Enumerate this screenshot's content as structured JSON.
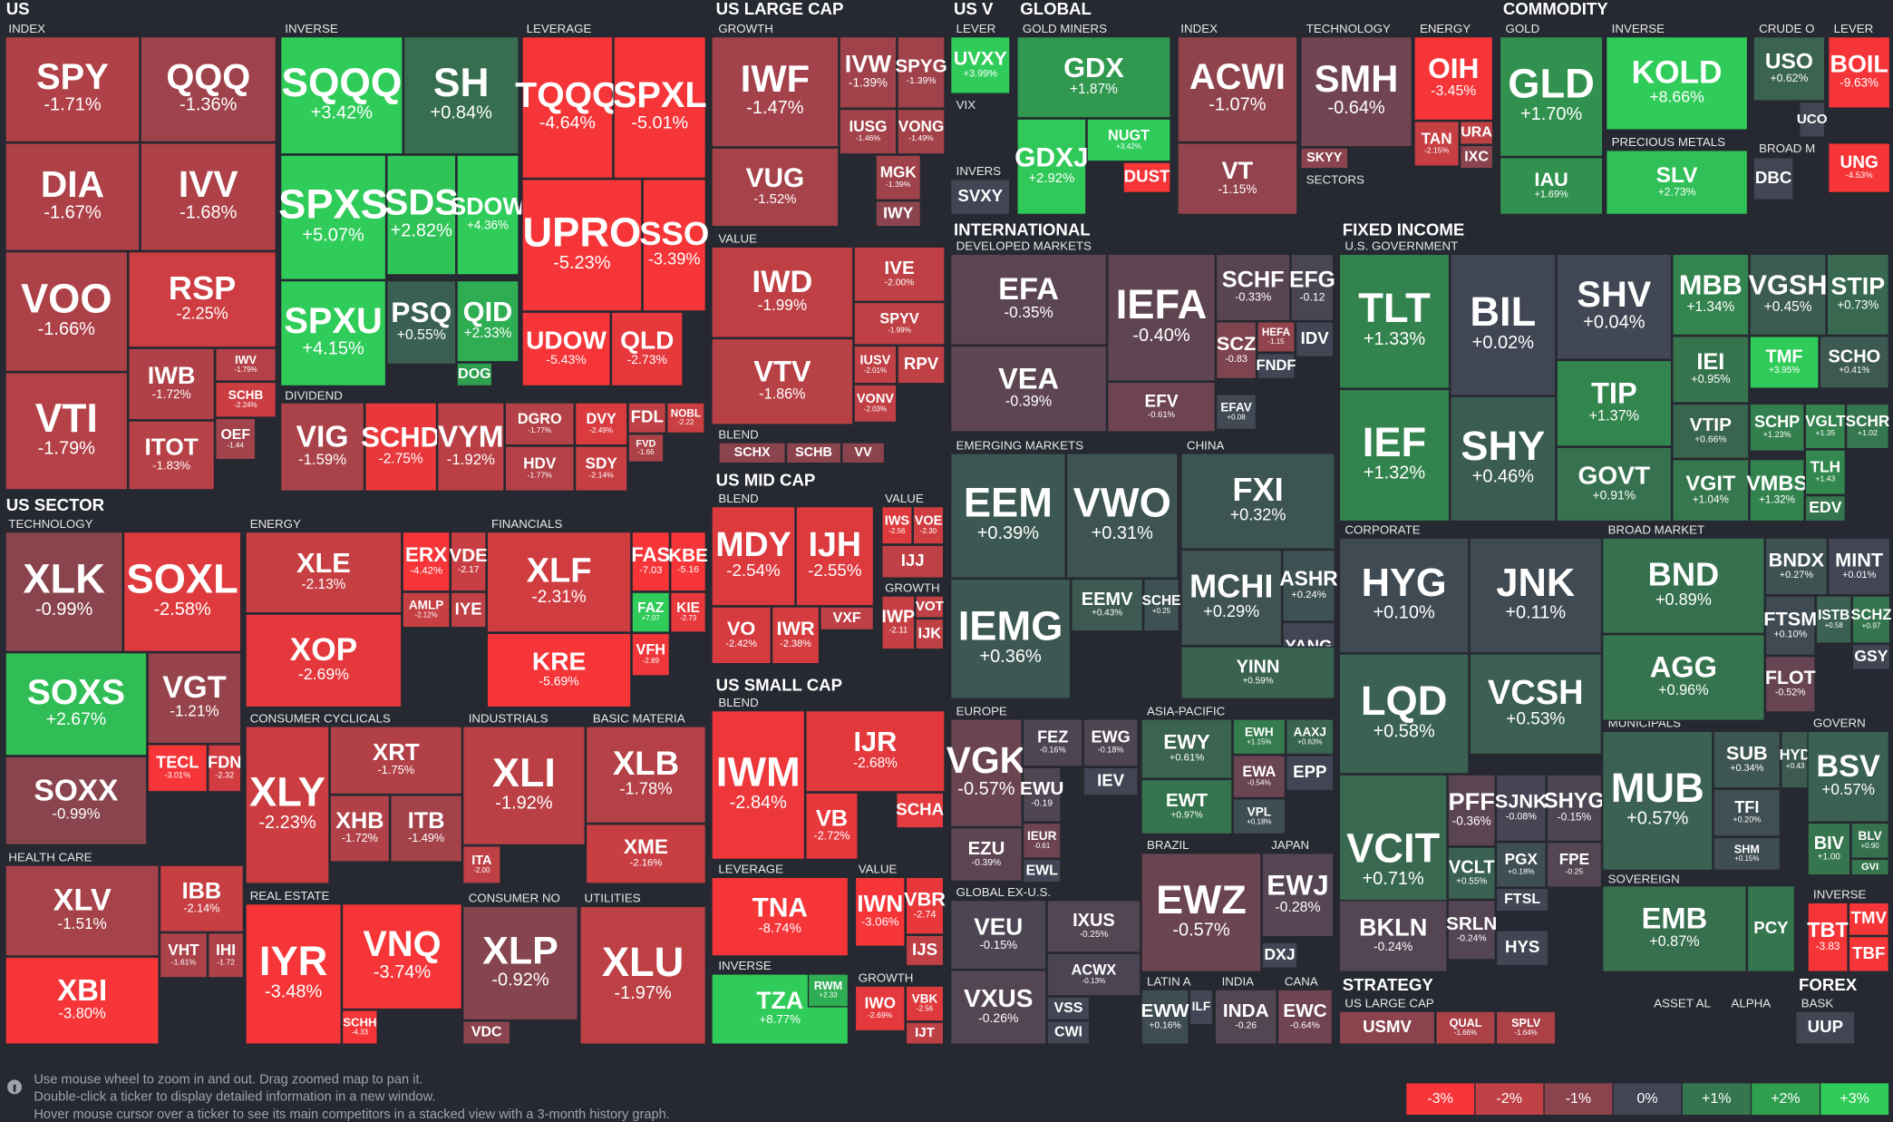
{
  "headers": [
    {
      "text": "US"
    },
    {
      "text": "US LARGE CAP"
    },
    {
      "text": "US V"
    },
    {
      "text": "GLOBAL"
    },
    {
      "text": "COMMODITY"
    },
    {
      "text": "US SECTOR"
    },
    {
      "text": "US MID CAP"
    },
    {
      "text": "US SMALL CAP"
    },
    {
      "text": "INTERNATIONAL"
    },
    {
      "text": "FIXED INCOME"
    },
    {
      "text": "STRATEGY"
    },
    {
      "text": "FOREX"
    },
    {
      "text": "INDEX"
    },
    {
      "text": "INVERSE"
    },
    {
      "text": "LEVERAGE"
    },
    {
      "text": "GROWTH"
    },
    {
      "text": "VALUE"
    },
    {
      "text": "BLEND"
    },
    {
      "text": "LEVER"
    },
    {
      "text": "VIX"
    },
    {
      "text": "INVERS"
    },
    {
      "text": "GOLD MINERS"
    },
    {
      "text": "INDEX"
    },
    {
      "text": "TECHNOLOGY"
    },
    {
      "text": "ENERGY"
    },
    {
      "text": "GOLD"
    },
    {
      "text": "INVERSE"
    },
    {
      "text": "CRUDE O"
    },
    {
      "text": "LEVER"
    },
    {
      "text": "PRECIOUS METALS"
    },
    {
      "text": "BROAD M"
    },
    {
      "text": "SECTORS"
    },
    {
      "text": "DIVIDEND"
    },
    {
      "text": "DEVELOPED MARKETS"
    },
    {
      "text": "EMERGING MARKETS"
    },
    {
      "text": "CHINA"
    },
    {
      "text": "U.S. GOVERNMENT"
    },
    {
      "text": "CORPORATE"
    },
    {
      "text": "BROAD MARKET"
    },
    {
      "text": "MUNICIPALS"
    },
    {
      "text": "GOVERN"
    },
    {
      "text": "SOVEREIGN"
    },
    {
      "text": "INVERSE"
    },
    {
      "text": "TECHNOLOGY"
    },
    {
      "text": "ENERGY"
    },
    {
      "text": "FINANCIALS"
    },
    {
      "text": "CONSUMER CYCLICALS"
    },
    {
      "text": "INDUSTRIALS"
    },
    {
      "text": "BASIC MATERIA"
    },
    {
      "text": "HEALTH CARE"
    },
    {
      "text": "REAL ESTATE"
    },
    {
      "text": "CONSUMER NO"
    },
    {
      "text": "UTILITIES"
    },
    {
      "text": "BLEND"
    },
    {
      "text": "VALUE"
    },
    {
      "text": "GROWTH"
    },
    {
      "text": "BLEND"
    },
    {
      "text": "LEVERAGE"
    },
    {
      "text": "VALUE"
    },
    {
      "text": "INVERSE"
    },
    {
      "text": "GROWTH"
    },
    {
      "text": "EUROPE"
    },
    {
      "text": "ASIA-PACIFIC"
    },
    {
      "text": "BRAZIL"
    },
    {
      "text": "JAPAN"
    },
    {
      "text": "GLOBAL EX-U.S."
    },
    {
      "text": "LATIN A"
    },
    {
      "text": "INDIA"
    },
    {
      "text": "CANA"
    },
    {
      "text": "US LARGE CAP"
    },
    {
      "text": "ASSET AL"
    },
    {
      "text": "ALPHA"
    },
    {
      "text": "BASK"
    }
  ],
  "tiles": [
    {
      "ticker": "SPY",
      "change": "-1.71%"
    },
    {
      "ticker": "QQQ",
      "change": "-1.36%"
    },
    {
      "ticker": "DIA",
      "change": "-1.67%"
    },
    {
      "ticker": "IVV",
      "change": "-1.68%"
    },
    {
      "ticker": "VOO",
      "change": "-1.66%"
    },
    {
      "ticker": "RSP",
      "change": "-2.25%"
    },
    {
      "ticker": "VTI",
      "change": "-1.79%"
    },
    {
      "ticker": "IWB",
      "change": "-1.72%"
    },
    {
      "ticker": "ITOT",
      "change": "-1.83%"
    },
    {
      "ticker": "IWV",
      "change": "-1.79%"
    },
    {
      "ticker": "SCHB",
      "change": "-2.24%"
    },
    {
      "ticker": "OEF",
      "change": "-1.44"
    },
    {
      "ticker": "SQQQ",
      "change": "+3.42%"
    },
    {
      "ticker": "SH",
      "change": "+0.84%"
    },
    {
      "ticker": "SPXS",
      "change": "+5.07%"
    },
    {
      "ticker": "SDS",
      "change": "+2.82%"
    },
    {
      "ticker": "SDOW",
      "change": "+4.36%"
    },
    {
      "ticker": "SPXU",
      "change": "+4.15%"
    },
    {
      "ticker": "PSQ",
      "change": "+0.55%"
    },
    {
      "ticker": "QID",
      "change": "+2.33%"
    },
    {
      "ticker": "DOG",
      "color": "#2f9e4f"
    },
    {
      "ticker": "TQQQ",
      "change": "-4.64%"
    },
    {
      "ticker": "SPXL",
      "change": "-5.01%"
    },
    {
      "ticker": "UPRO",
      "change": "-5.23%"
    },
    {
      "ticker": "SSO",
      "change": "-3.39%"
    },
    {
      "ticker": "UDOW",
      "change": "-5.43%"
    },
    {
      "ticker": "QLD",
      "change": "-2.73%"
    },
    {
      "ticker": "VIG",
      "change": "-1.59%"
    },
    {
      "ticker": "SCHD",
      "change": "-2.75%"
    },
    {
      "ticker": "VYM",
      "change": "-1.92%"
    },
    {
      "ticker": "DGRO",
      "change": "-1.77%"
    },
    {
      "ticker": "HDV",
      "change": "-1.77%"
    },
    {
      "ticker": "DVY",
      "change": "-2.49%"
    },
    {
      "ticker": "SDY",
      "change": "-2.14%"
    },
    {
      "ticker": "FDL",
      "color": "#bf4045"
    },
    {
      "ticker": "NOBL",
      "change": "-2.22"
    },
    {
      "ticker": "FVD",
      "change": "-1.66"
    },
    {
      "ticker": "IWF",
      "change": "-1.47%"
    },
    {
      "ticker": "IVW",
      "change": "-1.39%"
    },
    {
      "ticker": "SPYG",
      "change": "-1.39%"
    },
    {
      "ticker": "IUSG",
      "change": "-1.46%"
    },
    {
      "ticker": "VONG",
      "change": "-1.49%"
    },
    {
      "ticker": "VUG",
      "change": "-1.52%"
    },
    {
      "ticker": "MGK",
      "change": "-1.39%"
    },
    {
      "ticker": "IWY",
      "color": "#8b444e"
    },
    {
      "ticker": "IWD",
      "change": "-1.99%"
    },
    {
      "ticker": "IVE",
      "change": "-2.00%"
    },
    {
      "ticker": "SPYV",
      "change": "-1.99%"
    },
    {
      "ticker": "VTV",
      "change": "-1.86%"
    },
    {
      "ticker": "IUSV",
      "change": "-2.01%"
    },
    {
      "ticker": "RPV",
      "color": "#bf4045"
    },
    {
      "ticker": "VONV",
      "change": "-2.03%"
    },
    {
      "ticker": "SCHX",
      "color": "#8b444e"
    },
    {
      "ticker": "SCHB",
      "color": "#8b444e"
    },
    {
      "ticker": "VV",
      "color": "#8b444e"
    },
    {
      "ticker": "MDY",
      "change": "-2.54%"
    },
    {
      "ticker": "IJH",
      "change": "-2.55%"
    },
    {
      "ticker": "VO",
      "change": "-2.42%"
    },
    {
      "ticker": "IWR",
      "change": "-2.38%"
    },
    {
      "ticker": "VXF",
      "color": "#bf4045"
    },
    {
      "ticker": "IWS",
      "change": "-2.56"
    },
    {
      "ticker": "VOE",
      "change": "-2.30"
    },
    {
      "ticker": "IJJ",
      "color": "#bf4045"
    },
    {
      "ticker": "IWP",
      "change": "-2.11"
    },
    {
      "ticker": "VOT",
      "color": "#bf4045"
    },
    {
      "ticker": "IJK",
      "color": "#bf4045"
    },
    {
      "ticker": "IWM",
      "change": "-2.84%"
    },
    {
      "ticker": "IJR",
      "change": "-2.68%"
    },
    {
      "ticker": "VB",
      "change": "-2.72%"
    },
    {
      "ticker": "SCHA",
      "color": "#e53a3f"
    },
    {
      "ticker": "TNA",
      "change": "-8.74%"
    },
    {
      "ticker": "IWN",
      "change": "-3.06%"
    },
    {
      "ticker": "VBR",
      "change": "-2.74"
    },
    {
      "ticker": "IJS",
      "color": "#bf4045"
    },
    {
      "ticker": "TZA",
      "change": "+8.77%"
    },
    {
      "ticker": "RWM",
      "change": "+2.33"
    },
    {
      "ticker": "IWO",
      "change": "-2.69%"
    },
    {
      "ticker": "VBK",
      "change": "-2.56"
    },
    {
      "ticker": "IJT",
      "color": "#bf4045"
    },
    {
      "ticker": "XLK",
      "change": "-0.99%"
    },
    {
      "ticker": "SOXL",
      "change": "-2.58%"
    },
    {
      "ticker": "SOXS",
      "change": "+2.67%"
    },
    {
      "ticker": "VGT",
      "change": "-1.21%"
    },
    {
      "ticker": "SOXX",
      "change": "-0.99%"
    },
    {
      "ticker": "TECL",
      "change": "-3.01%"
    },
    {
      "ticker": "FDN",
      "change": "-2.32"
    },
    {
      "ticker": "XLE",
      "change": "-2.13%"
    },
    {
      "ticker": "ERX",
      "change": "-4.42%"
    },
    {
      "ticker": "VDE",
      "change": "-2.17"
    },
    {
      "ticker": "XOP",
      "change": "-2.69%"
    },
    {
      "ticker": "AMLP",
      "change": "-2.12%"
    },
    {
      "ticker": "IYE",
      "color": "#bf4045"
    },
    {
      "ticker": "XLF",
      "change": "-2.31%"
    },
    {
      "ticker": "FAS",
      "change": "-7.03"
    },
    {
      "ticker": "KBE",
      "change": "-5.16"
    },
    {
      "ticker": "KRE",
      "change": "-5.69%"
    },
    {
      "ticker": "FAZ",
      "change": "+7.07"
    },
    {
      "ticker": "KIE",
      "change": "-2.73"
    },
    {
      "ticker": "VFH",
      "change": "-2.89"
    },
    {
      "ticker": "XLY",
      "change": "-2.23%"
    },
    {
      "ticker": "XRT",
      "change": "-1.75%"
    },
    {
      "ticker": "XHB",
      "change": "-1.72%"
    },
    {
      "ticker": "ITB",
      "change": "-1.49%"
    },
    {
      "ticker": "XLI",
      "change": "-1.92%"
    },
    {
      "ticker": "ITA",
      "change": "-2.00"
    },
    {
      "ticker": "XLB",
      "change": "-1.78%"
    },
    {
      "ticker": "XME",
      "change": "-2.16%"
    },
    {
      "ticker": "XLV",
      "change": "-1.51%"
    },
    {
      "ticker": "IBB",
      "change": "-2.14%"
    },
    {
      "ticker": "VHT",
      "change": "-1.61%"
    },
    {
      "ticker": "IHI",
      "change": "-1.72"
    },
    {
      "ticker": "XBI",
      "change": "-3.80%"
    },
    {
      "ticker": "IYR",
      "change": "-3.48%"
    },
    {
      "ticker": "VNQ",
      "change": "-3.74%"
    },
    {
      "ticker": "SCHH",
      "change": "-4.33"
    },
    {
      "ticker": "XLP",
      "change": "-0.92%"
    },
    {
      "ticker": "VDC",
      "color": "#8b444e"
    },
    {
      "ticker": "XLU",
      "change": "-1.97%"
    },
    {
      "ticker": "UVXY",
      "change": "+3.99%"
    },
    {
      "ticker": "SVXY",
      "color": "#414554"
    },
    {
      "ticker": "GDX",
      "change": "+1.87%"
    },
    {
      "ticker": "GDXJ",
      "change": "+2.92%"
    },
    {
      "ticker": "NUGT",
      "change": "+3.42%"
    },
    {
      "ticker": "DUST",
      "color": "#f63538"
    },
    {
      "ticker": "ACWI",
      "change": "-1.07%"
    },
    {
      "ticker": "VT",
      "change": "-1.15%"
    },
    {
      "ticker": "SMH",
      "change": "-0.64%"
    },
    {
      "ticker": "SKYY",
      "color": "#8b444e"
    },
    {
      "ticker": "OIH",
      "change": "-3.45%"
    },
    {
      "ticker": "TAN",
      "change": "-2.15%"
    },
    {
      "ticker": "URA",
      "color": "#bf4045"
    },
    {
      "ticker": "IXC",
      "color": "#8b444e"
    },
    {
      "ticker": "GLD",
      "change": "+1.70%"
    },
    {
      "ticker": "IAU",
      "change": "+1.69%"
    },
    {
      "ticker": "KOLD",
      "change": "+8.66%"
    },
    {
      "ticker": "SLV",
      "change": "+2.73%"
    },
    {
      "ticker": "USO",
      "change": "+0.62%"
    },
    {
      "ticker": "UCO",
      "color": "#414554"
    },
    {
      "ticker": "DBC",
      "color": "#414554"
    },
    {
      "ticker": "BOIL",
      "change": "-9.63%"
    },
    {
      "ticker": "UNG",
      "change": "-4.53%"
    },
    {
      "ticker": "EFA",
      "change": "-0.35%"
    },
    {
      "ticker": "VEA",
      "change": "-0.39%"
    },
    {
      "ticker": "IEFA",
      "change": "-0.40%"
    },
    {
      "ticker": "EFV",
      "change": "-0.61%"
    },
    {
      "ticker": "SCHF",
      "change": "-0.33%"
    },
    {
      "ticker": "EFG",
      "change": "-0.12"
    },
    {
      "ticker": "SCZ",
      "change": "-0.83"
    },
    {
      "ticker": "HEFA",
      "change": "-1.15"
    },
    {
      "ticker": "IDV",
      "color": "#414554"
    },
    {
      "ticker": "FNDF",
      "color": "#414554"
    },
    {
      "ticker": "EFAV",
      "change": "+0.08"
    },
    {
      "ticker": "EEM",
      "change": "+0.39%"
    },
    {
      "ticker": "VWO",
      "change": "+0.31%"
    },
    {
      "ticker": "IEMG",
      "change": "+0.36%"
    },
    {
      "ticker": "EEMV",
      "change": "+0.43%"
    },
    {
      "ticker": "SCHE",
      "change": "+0.25"
    },
    {
      "ticker": "FXI",
      "change": "+0.32%"
    },
    {
      "ticker": "MCHI",
      "change": "+0.29%"
    },
    {
      "ticker": "ASHR",
      "change": "+0.24%"
    },
    {
      "ticker": "YANG",
      "color": "#414554"
    },
    {
      "ticker": "YINN",
      "change": "+0.59%"
    },
    {
      "ticker": "VGK",
      "change": "-0.57%"
    },
    {
      "ticker": "FEZ",
      "change": "-0.16%"
    },
    {
      "ticker": "EWG",
      "change": "-0.18%"
    },
    {
      "ticker": "EWU",
      "change": "-0.19"
    },
    {
      "ticker": "IEV",
      "color": "#414554"
    },
    {
      "ticker": "EZU",
      "change": "-0.39%"
    },
    {
      "ticker": "IEUR",
      "change": "-0.61"
    },
    {
      "ticker": "EWL",
      "color": "#414554"
    },
    {
      "ticker": "EWY",
      "change": "+0.61%"
    },
    {
      "ticker": "EWH",
      "change": "+1.15%"
    },
    {
      "ticker": "AAXJ",
      "change": "+0.63%"
    },
    {
      "ticker": "EWT",
      "change": "+0.97%"
    },
    {
      "ticker": "EWA",
      "change": "-0.54%"
    },
    {
      "ticker": "EPP",
      "color": "#414554"
    },
    {
      "ticker": "VPL",
      "change": "+0.18%"
    },
    {
      "ticker": "EWZ",
      "change": "-0.57%"
    },
    {
      "ticker": "EWJ",
      "change": "-0.28%"
    },
    {
      "ticker": "DXJ",
      "color": "#414554"
    },
    {
      "ticker": "VEU",
      "change": "-0.15%"
    },
    {
      "ticker": "IXUS",
      "change": "-0.25%"
    },
    {
      "ticker": "VXUS",
      "change": "-0.26%"
    },
    {
      "ticker": "ACWX",
      "change": "-0.13%"
    },
    {
      "ticker": "VSS",
      "color": "#414554"
    },
    {
      "ticker": "CWI",
      "color": "#414554"
    },
    {
      "ticker": "EWW",
      "change": "+0.16%"
    },
    {
      "ticker": "ILF",
      "color": "#414554"
    },
    {
      "ticker": "INDA",
      "change": "-0.26"
    },
    {
      "ticker": "EWC",
      "change": "-0.64%"
    },
    {
      "ticker": "TLT",
      "change": "+1.33%"
    },
    {
      "ticker": "IEF",
      "change": "+1.32%"
    },
    {
      "ticker": "BIL",
      "change": "+0.02%"
    },
    {
      "ticker": "SHY",
      "change": "+0.46%"
    },
    {
      "ticker": "SHV",
      "change": "+0.04%"
    },
    {
      "ticker": "TIP",
      "change": "+1.37%"
    },
    {
      "ticker": "GOVT",
      "change": "+0.91%"
    },
    {
      "ticker": "MBB",
      "change": "+1.34%"
    },
    {
      "ticker": "VGSH",
      "change": "+0.45%"
    },
    {
      "ticker": "STIP",
      "change": "+0.73%"
    },
    {
      "ticker": "IEI",
      "change": "+0.95%"
    },
    {
      "ticker": "TMF",
      "change": "+3.95%"
    },
    {
      "ticker": "SCHO",
      "change": "+0.41%"
    },
    {
      "ticker": "VTIP",
      "change": "+0.66%"
    },
    {
      "ticker": "SCHP",
      "change": "+1.23%"
    },
    {
      "ticker": "VGLT",
      "change": "+1.35"
    },
    {
      "ticker": "SCHR",
      "change": "+1.02"
    },
    {
      "ticker": "VGIT",
      "change": "+1.04%"
    },
    {
      "ticker": "VMBS",
      "change": "+1.32%"
    },
    {
      "ticker": "TLH",
      "change": "+1.43"
    },
    {
      "ticker": "EDV",
      "color": "#35764e"
    },
    {
      "ticker": "HYG",
      "change": "+0.10%"
    },
    {
      "ticker": "JNK",
      "change": "+0.11%"
    },
    {
      "ticker": "LQD",
      "change": "+0.58%"
    },
    {
      "ticker": "VCSH",
      "change": "+0.53%"
    },
    {
      "ticker": "VCIT",
      "change": "+0.71%"
    },
    {
      "ticker": "PFF",
      "change": "-0.36%"
    },
    {
      "ticker": "SJNK",
      "change": "-0.08%"
    },
    {
      "ticker": "SHYG",
      "change": "-0.15%"
    },
    {
      "ticker": "PGX",
      "change": "+0.18%"
    },
    {
      "ticker": "FPE",
      "change": "-0.25"
    },
    {
      "ticker": "VCLT",
      "change": "+0.55%"
    },
    {
      "ticker": "FTSL",
      "color": "#414554"
    },
    {
      "ticker": "BKLN",
      "change": "-0.24%"
    },
    {
      "ticker": "SRLN",
      "change": "-0.24%"
    },
    {
      "ticker": "HYS",
      "color": "#414554"
    },
    {
      "ticker": "BND",
      "change": "+0.89%"
    },
    {
      "ticker": "AGG",
      "change": "+0.96%"
    },
    {
      "ticker": "BNDX",
      "change": "+0.27%"
    },
    {
      "ticker": "MINT",
      "change": "+0.01%"
    },
    {
      "ticker": "FTSM",
      "change": "+0.10%"
    },
    {
      "ticker": "ISTB",
      "change": "+0.58"
    },
    {
      "ticker": "SCHZ",
      "change": "+0.97"
    },
    {
      "ticker": "GSY",
      "color": "#414554"
    },
    {
      "ticker": "FLOT",
      "change": "-0.52%"
    },
    {
      "ticker": "MUB",
      "change": "+0.57%"
    },
    {
      "ticker": "SUB",
      "change": "+0.34%"
    },
    {
      "ticker": "HYD",
      "change": "+0.43"
    },
    {
      "ticker": "TFI",
      "change": "+0.20%"
    },
    {
      "ticker": "SHM",
      "change": "+0.15%"
    },
    {
      "ticker": "BSV",
      "change": "+0.57%"
    },
    {
      "ticker": "BIV",
      "change": "+1.00"
    },
    {
      "ticker": "BLV",
      "change": "+0.90"
    },
    {
      "ticker": "GVI",
      "color": "#35764e"
    },
    {
      "ticker": "EMB",
      "change": "+0.87%"
    },
    {
      "ticker": "PCY",
      "color": "#35764e"
    },
    {
      "ticker": "TBT",
      "change": "-3.83"
    },
    {
      "ticker": "TMV",
      "color": "#f63538"
    },
    {
      "ticker": "TBF",
      "color": "#f63538"
    },
    {
      "ticker": "USMV",
      "color": "#8b444e"
    },
    {
      "ticker": "QUAL",
      "change": "-1.66%"
    },
    {
      "ticker": "SPLV",
      "change": "-1.64%"
    },
    {
      "ticker": "UUP",
      "color": "#414554"
    }
  ],
  "footer": [
    "Use mouse wheel to zoom in and out. Drag zoomed map to pan it.",
    "Double-click a ticker to display detailed information in a new window.",
    "Hover mouse cursor over a ticker to see its main competitors in a stacked view with a 3-month history graph."
  ],
  "legend": [
    {
      "label": "-3%",
      "color": "#f63538"
    },
    {
      "label": "-2%",
      "color": "#bf4045"
    },
    {
      "label": "-1%",
      "color": "#8b444e"
    },
    {
      "label": "0%",
      "color": "#414554"
    },
    {
      "label": "+1%",
      "color": "#35764e"
    },
    {
      "label": "+2%",
      "color": "#2f9e4f"
    },
    {
      "label": "+3%",
      "color": "#30cc5a"
    }
  ]
}
